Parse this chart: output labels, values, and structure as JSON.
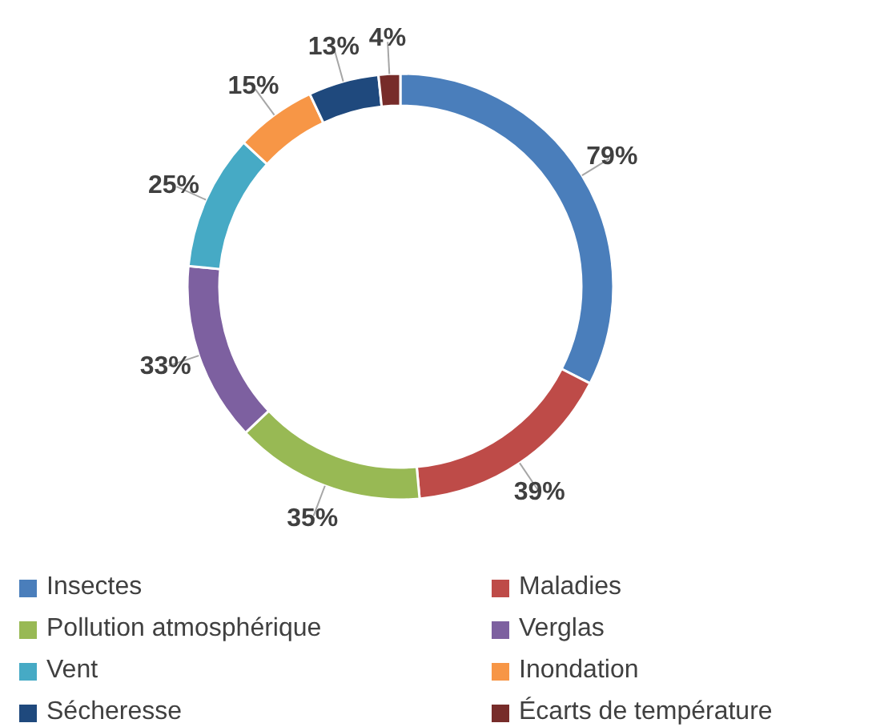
{
  "chart_data": {
    "type": "donut",
    "categories": [
      "Insectes",
      "Maladies",
      "Pollution atmosphérique",
      "Verglas",
      "Vent",
      "Inondation",
      "Sécheresse",
      "Écarts de température"
    ],
    "values": [
      79,
      39,
      35,
      33,
      25,
      15,
      13,
      4
    ],
    "value_labels": [
      "79%",
      "39%",
      "35%",
      "33%",
      "25%",
      "15%",
      "13%",
      "4%"
    ],
    "colors": [
      "#4a7ebb",
      "#be4b48",
      "#98b954",
      "#7d60a0",
      "#46aac5",
      "#f79646",
      "#1f497d",
      "#772c2a"
    ],
    "legend": "bottom"
  }
}
